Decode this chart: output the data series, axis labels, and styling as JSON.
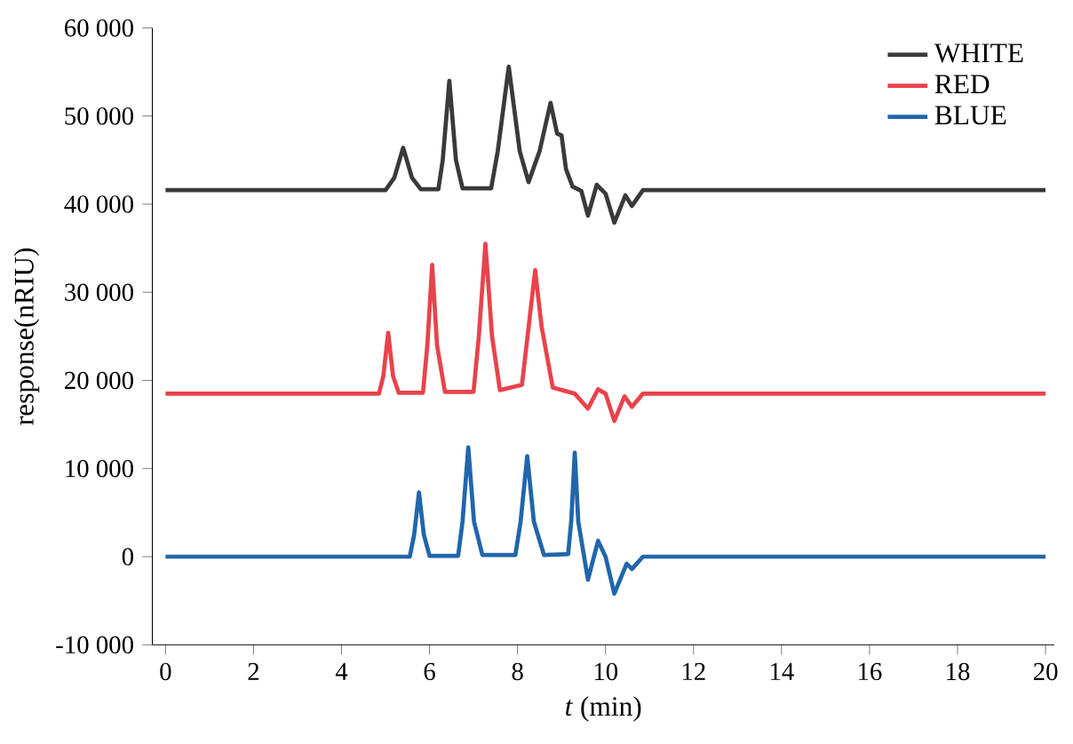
{
  "chart_data": {
    "type": "line",
    "xlabel": "*t* (min)",
    "ylabel": "response(nRIU)",
    "legend": "top right",
    "grid": false,
    "xlim": [
      -0.3,
      20.2
    ],
    "ylim": [
      -10000,
      60000
    ],
    "xticks": [
      0,
      2,
      4,
      6,
      8,
      10,
      12,
      14,
      16,
      18,
      20
    ],
    "yticks": [
      {
        "value": -10000,
        "label": "-10 000"
      },
      {
        "value": 0,
        "label": "0"
      },
      {
        "value": 10000,
        "label": "10 000"
      },
      {
        "value": 20000,
        "label": "20 000"
      },
      {
        "value": 30000,
        "label": "30 000"
      },
      {
        "value": 40000,
        "label": "40 000"
      },
      {
        "value": 50000,
        "label": "50 000"
      },
      {
        "value": 60000,
        "label": "60 000"
      }
    ],
    "series": [
      {
        "name": "WHITE",
        "color": "#3a3a3a",
        "x": [
          0,
          5.0,
          5.2,
          5.4,
          5.6,
          5.8,
          6.2,
          6.3,
          6.45,
          6.6,
          6.75,
          7.4,
          7.55,
          7.8,
          8.05,
          8.25,
          8.5,
          8.75,
          8.9,
          9.0,
          9.1,
          9.25,
          9.45,
          9.6,
          9.8,
          10.0,
          10.2,
          10.45,
          10.6,
          10.85,
          20
        ],
        "values": [
          41600,
          41600,
          43000,
          46400,
          43000,
          41700,
          41700,
          45000,
          54000,
          45000,
          41800,
          41800,
          46000,
          55600,
          46000,
          42500,
          46000,
          51500,
          48000,
          47800,
          44000,
          42000,
          41500,
          38700,
          42200,
          41200,
          37900,
          41000,
          39800,
          41600,
          41600
        ]
      },
      {
        "name": "RED",
        "color": "#e8434b",
        "x": [
          0,
          4.85,
          4.95,
          5.06,
          5.17,
          5.3,
          5.85,
          5.95,
          6.06,
          6.17,
          6.35,
          7.0,
          7.12,
          7.27,
          7.42,
          7.6,
          8.1,
          8.25,
          8.4,
          8.55,
          8.8,
          9.3,
          9.6,
          9.83,
          10.0,
          10.2,
          10.43,
          10.6,
          10.85,
          20
        ],
        "values": [
          18500,
          18500,
          20500,
          25400,
          20500,
          18600,
          18600,
          24000,
          33100,
          24000,
          18700,
          18700,
          25000,
          35500,
          25000,
          18900,
          19500,
          26000,
          32500,
          26000,
          19200,
          18500,
          16800,
          19000,
          18500,
          15400,
          18200,
          17000,
          18500,
          18500
        ]
      },
      {
        "name": "BLUE",
        "color": "#2166ac",
        "x": [
          0,
          5.55,
          5.65,
          5.76,
          5.87,
          6.0,
          6.65,
          6.75,
          6.88,
          7.01,
          7.2,
          7.95,
          8.07,
          8.22,
          8.37,
          8.6,
          9.15,
          9.22,
          9.3,
          9.38,
          9.6,
          9.83,
          10.0,
          10.2,
          10.48,
          10.6,
          10.85,
          20
        ],
        "values": [
          0,
          0,
          2500,
          7300,
          2500,
          100,
          100,
          4000,
          12400,
          4000,
          200,
          200,
          4000,
          11400,
          4000,
          200,
          300,
          4000,
          11800,
          4000,
          -2600,
          1800,
          0,
          -4200,
          -800,
          -1400,
          0,
          0
        ]
      }
    ]
  }
}
